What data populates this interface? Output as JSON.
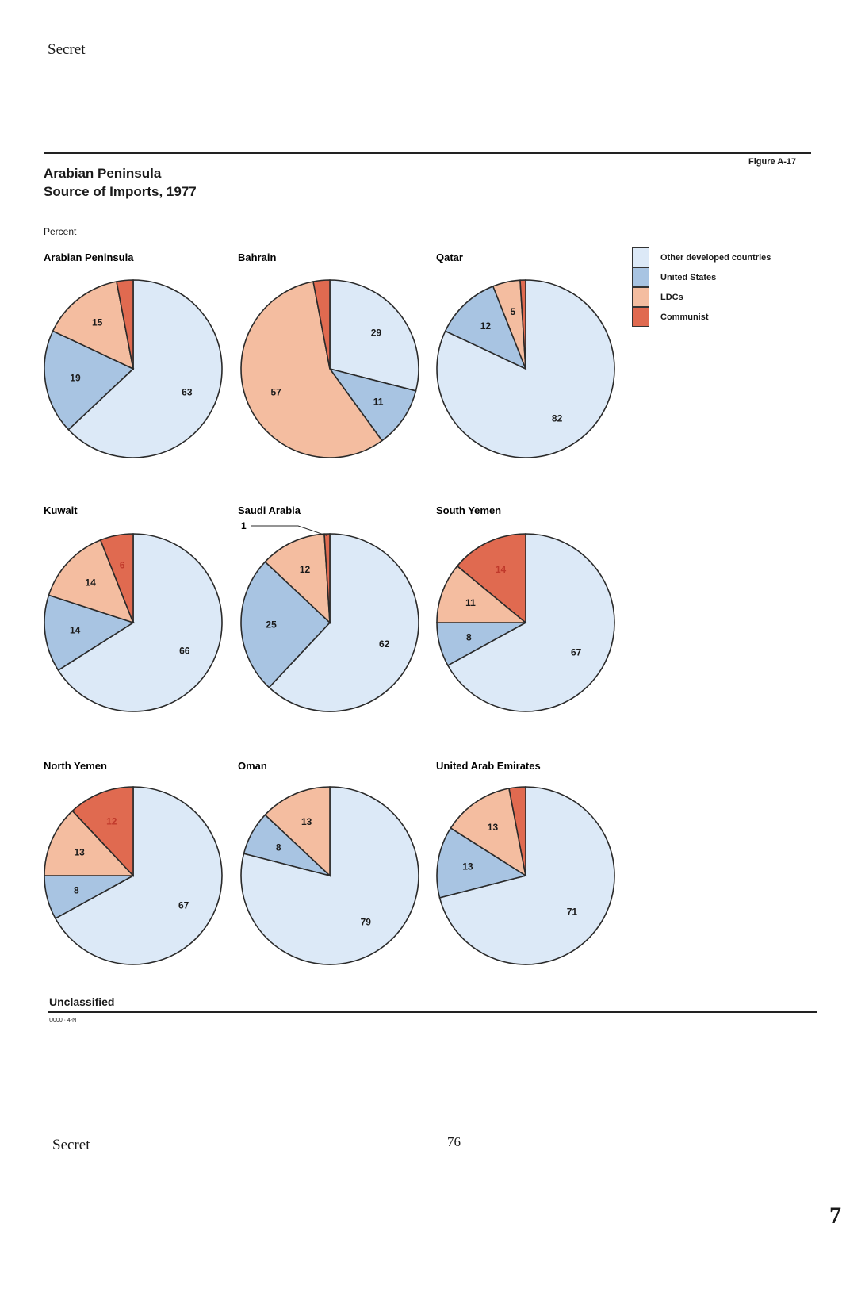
{
  "page": {
    "header_classification": "Secret",
    "figure_label": "Figure A-17",
    "footer_classification": "Unclassified",
    "footer_code": "U000 · 4-N",
    "bottom_classification": "Secret",
    "page_number": "76",
    "edge_number": "7"
  },
  "chart_data": {
    "type": "pie",
    "title": "Arabian Peninsula",
    "subtitle": "Source of Imports, 1977",
    "units": "Percent",
    "legend_position": "right",
    "series_order": [
      "Other developed countries",
      "United States",
      "LDCs",
      "Communist"
    ],
    "legend": [
      {
        "name": "Other developed countries",
        "color": "#dce9f7"
      },
      {
        "name": "United States",
        "color": "#a8c4e2"
      },
      {
        "name": "LDCs",
        "color": "#f4bda0"
      },
      {
        "name": "Communist",
        "color": "#e06a50"
      }
    ],
    "charts": [
      {
        "name": "Arabian Peninsula",
        "values": [
          63,
          19,
          15,
          3
        ],
        "labels": [
          "63",
          "19",
          "15",
          ""
        ]
      },
      {
        "name": "Bahrain",
        "values": [
          29,
          11,
          57,
          3
        ],
        "labels": [
          "29",
          "11",
          "57",
          ""
        ]
      },
      {
        "name": "Qatar",
        "values": [
          82,
          12,
          5,
          1
        ],
        "labels": [
          "82",
          "12",
          "5",
          ""
        ]
      },
      {
        "name": "Kuwait",
        "values": [
          66,
          14,
          14,
          6
        ],
        "labels": [
          "66",
          "14",
          "14",
          "6"
        ]
      },
      {
        "name": "Saudi Arabia",
        "values": [
          62,
          25,
          12,
          1
        ],
        "labels": [
          "62",
          "25",
          "12",
          ""
        ],
        "callout": "1"
      },
      {
        "name": "South Yemen",
        "values": [
          67,
          8,
          11,
          14
        ],
        "labels": [
          "67",
          "8",
          "11",
          "14"
        ]
      },
      {
        "name": "North Yemen",
        "values": [
          67,
          8,
          13,
          12
        ],
        "labels": [
          "67",
          "8",
          "13",
          "12"
        ]
      },
      {
        "name": "Oman",
        "values": [
          79,
          8,
          13,
          0
        ],
        "labels": [
          "79",
          "8",
          "13",
          ""
        ]
      },
      {
        "name": "United Arab Emirates",
        "values": [
          71,
          13,
          13,
          3
        ],
        "labels": [
          "71",
          "13",
          "13",
          ""
        ]
      }
    ]
  }
}
